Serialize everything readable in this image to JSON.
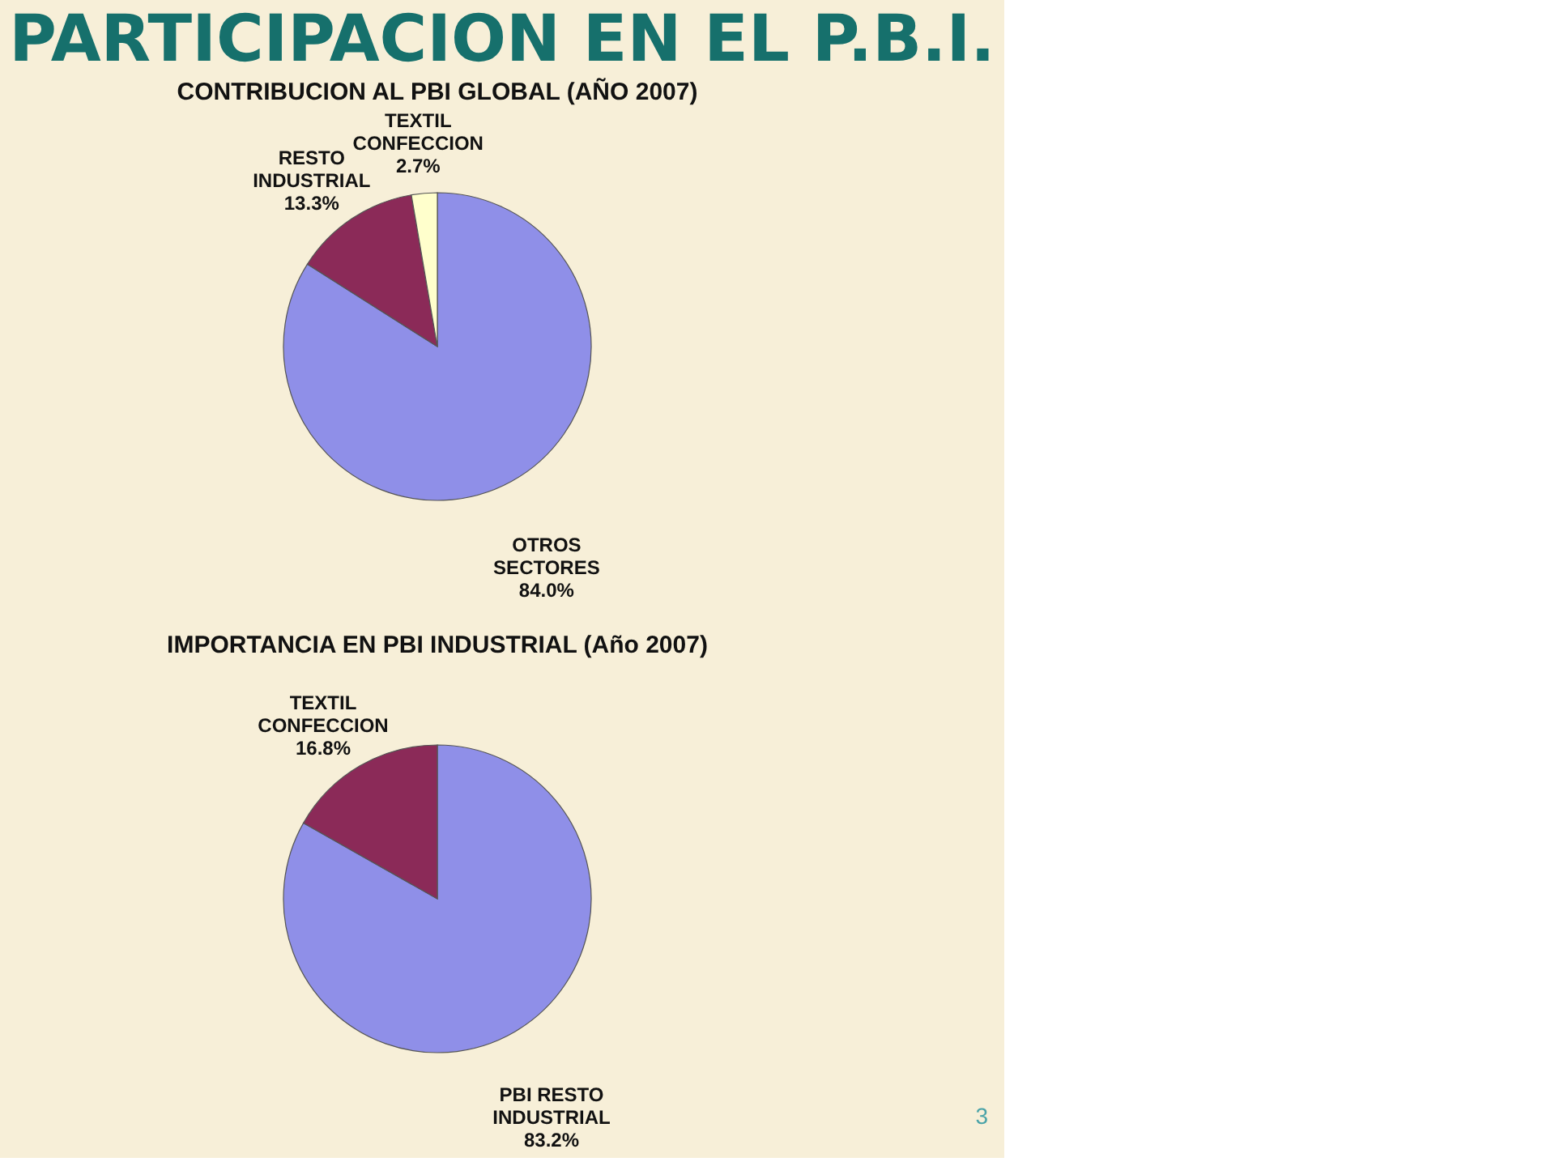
{
  "chart_data": [
    {
      "type": "pie",
      "title": "CONTRIBUCION  AL  PBI GLOBAL  (AÑO  2007)",
      "categories": [
        "OTROS SECTORES",
        "RESTO INDUSTRIAL",
        "TEXTIL CONFECCION"
      ],
      "values": [
        84.0,
        13.3,
        2.7
      ],
      "value_labels": [
        "84.0%",
        "13.3%",
        "2.7%"
      ],
      "colors": [
        "#8f8fe8",
        "#8b2a58",
        "#ffffcc"
      ],
      "annotations": [
        "PARTICIPACION EN EL P.B.I."
      ]
    },
    {
      "type": "pie",
      "title": "IMPORTANCIA EN PBI INDUSTRIAL (Año  2007)",
      "categories": [
        "PBI RESTO INDUSTRIAL",
        "TEXTIL CONFECCION"
      ],
      "values": [
        83.2,
        16.8
      ],
      "value_labels": [
        "83.2%",
        "16.8%"
      ],
      "colors": [
        "#8f8fe8",
        "#8b2a58"
      ],
      "annotations": [
        "3"
      ]
    }
  ]
}
